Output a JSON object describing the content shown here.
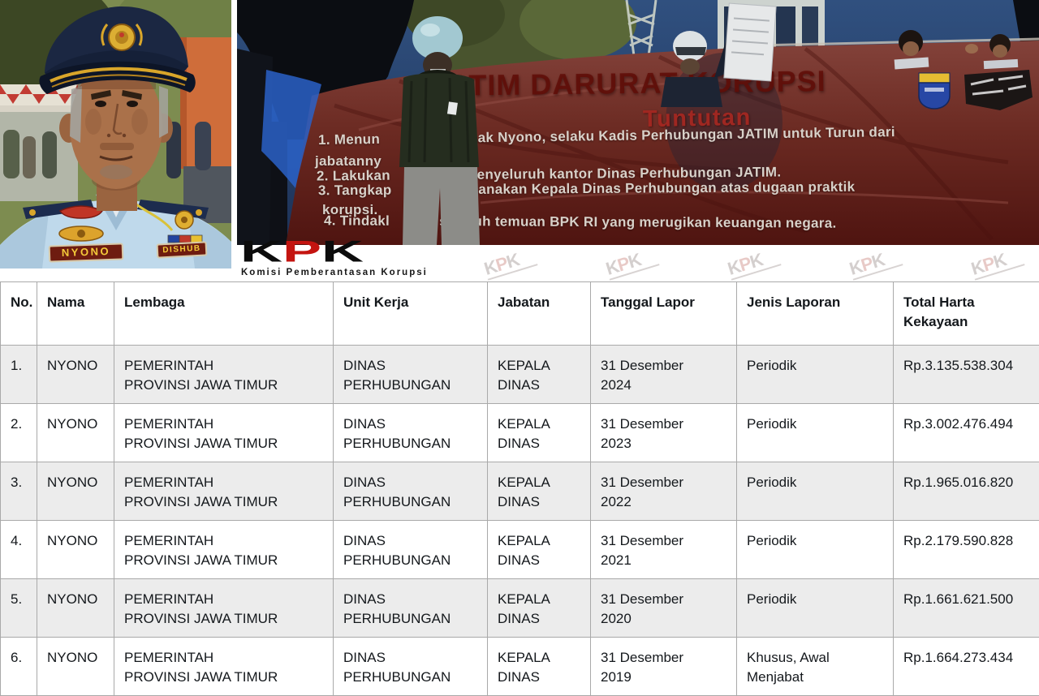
{
  "portrait": {
    "name_badge": "NYONO",
    "agency_badge": "DISHUB"
  },
  "protest": {
    "banner_title": "JATIM DARURAT KORUPSI",
    "banner_subtitle": "Tuntutan",
    "demands": [
      "1. Menun                        ak Nyono, selaku Kadis Perhubungan JATIM untuk Turun dari",
      "jabatanny",
      "2. Lakukan                t menyeluruh kantor Dinas Perhubungan JATIM.",
      "3. Tangkap                pidanakan Kepala Dinas Perhubungan atas dugaan praktik",
      "korupsi.",
      "4. Tindakl         ti seluruh temuan BPK RI yang merugikan keuangan negara."
    ]
  },
  "kpk": {
    "letters": [
      "K",
      "P",
      "K"
    ],
    "tagline": "Komisi Pemberantasan Korupsi",
    "watermark_letters": [
      "K",
      "P",
      "K"
    ],
    "watermark_count": 5
  },
  "table": {
    "headers": [
      "No.",
      "Nama",
      "Lembaga",
      "Unit Kerja",
      "Jabatan",
      "Tanggal Lapor",
      "Jenis Laporan",
      "Total Harta Kekayaan"
    ],
    "rows": [
      [
        "1.",
        "NYONO",
        "PEMERINTAH PROVINSI JAWA TIMUR",
        "DINAS PERHUBUNGAN",
        "KEPALA DINAS",
        "31 Desember 2024",
        "Periodik",
        "Rp.3.135.538.304"
      ],
      [
        "2.",
        "NYONO",
        "PEMERINTAH PROVINSI JAWA TIMUR",
        "DINAS PERHUBUNGAN",
        "KEPALA DINAS",
        "31 Desember 2023",
        "Periodik",
        "Rp.3.002.476.494"
      ],
      [
        "3.",
        "NYONO",
        "PEMERINTAH PROVINSI JAWA TIMUR",
        "DINAS PERHUBUNGAN",
        "KEPALA DINAS",
        "31 Desember 2022",
        "Periodik",
        "Rp.1.965.016.820"
      ],
      [
        "4.",
        "NYONO",
        "PEMERINTAH PROVINSI JAWA TIMUR",
        "DINAS PERHUBUNGAN",
        "KEPALA DINAS",
        "31 Desember 2021",
        "Periodik",
        "Rp.2.179.590.828"
      ],
      [
        "5.",
        "NYONO",
        "PEMERINTAH PROVINSI JAWA TIMUR",
        "DINAS PERHUBUNGAN",
        "KEPALA DINAS",
        "31 Desember 2020",
        "Periodik",
        "Rp.1.661.621.500"
      ],
      [
        "6.",
        "NYONO",
        "PEMERINTAH PROVINSI JAWA TIMUR",
        "DINAS PERHUBUNGAN",
        "KEPALA DINAS",
        "31 Desember 2019",
        "Khusus, Awal Menjabat",
        "Rp.1.664.273.434"
      ]
    ]
  },
  "colors": {
    "banner_red": "#6b2a22",
    "title_red": "#610e08",
    "kpk_red": "#c41410",
    "row_alt_gray": "#ececec",
    "table_border": "#a9a9a9",
    "uniform_blue": "#bfd9eb",
    "badge_maroon": "#6e1c10",
    "badge_gold": "#f5cb3a"
  }
}
